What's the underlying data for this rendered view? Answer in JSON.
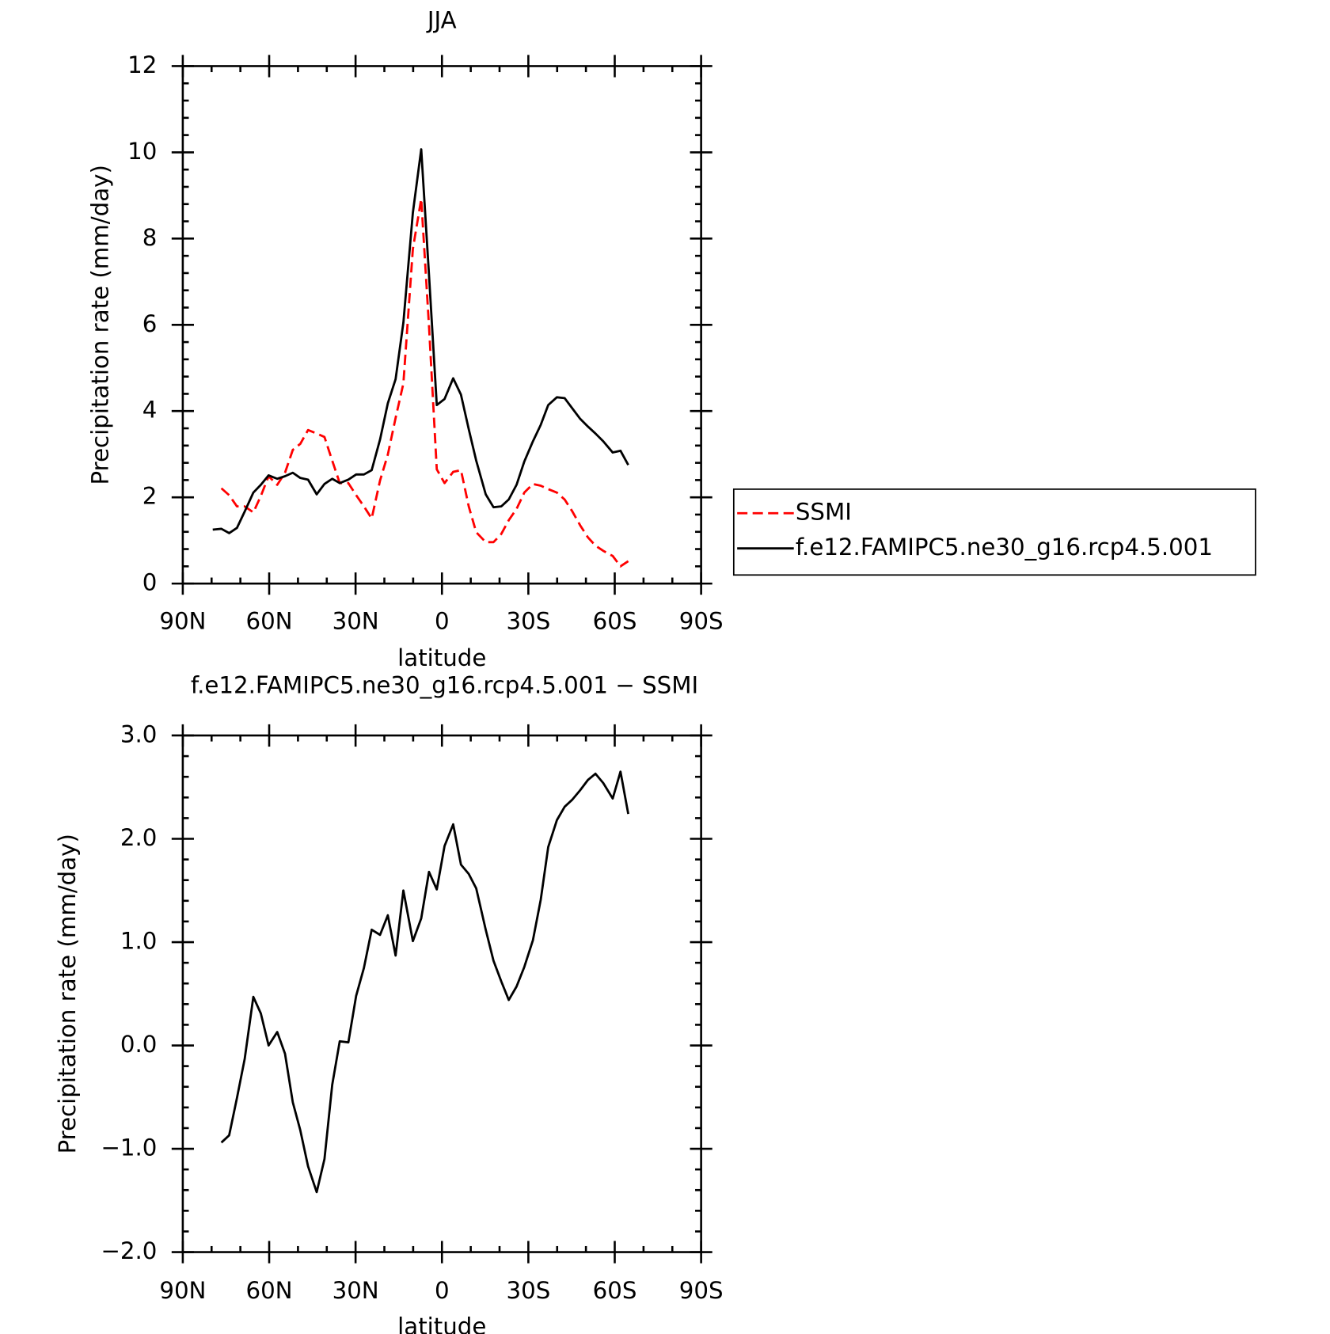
{
  "chart_data": [
    {
      "type": "line",
      "title": "JJA",
      "xlabel": "latitude",
      "ylabel": "Precipitation rate (mm/day)",
      "x": [
        79.6,
        76.6,
        73.9,
        71.2,
        68.5,
        65.5,
        62.9,
        60.2,
        57.2,
        54.5,
        51.8,
        49.2,
        46.5,
        43.5,
        40.8,
        38.1,
        35.5,
        32.5,
        29.8,
        27.1,
        24.4,
        21.5,
        18.8,
        16.1,
        13.4,
        10.1,
        7.2,
        4.5,
        1.8,
        -0.9,
        -3.9,
        -6.6,
        -9.3,
        -11.9,
        -15.2,
        -17.9,
        -20.6,
        -23.2,
        -25.9,
        -28.6,
        -31.6,
        -34.3,
        -36.9,
        -39.9,
        -42.6,
        -45.3,
        -48.0,
        -50.7,
        -53.3,
        -56.0,
        -59.3,
        -62.0,
        -64.7
      ],
      "series": [
        {
          "name": "SSMI",
          "color": "#ff0000",
          "dashed": true,
          "values": [
            null,
            2.21,
            2.05,
            1.79,
            1.79,
            1.65,
            2.03,
            2.49,
            2.29,
            2.57,
            3.1,
            3.24,
            3.56,
            3.48,
            3.4,
            2.85,
            2.33,
            2.33,
            2.05,
            1.79,
            1.51,
            2.39,
            2.99,
            3.84,
            4.64,
            7.76,
            8.92,
            5.97,
            2.65,
            2.33,
            2.59,
            2.63,
            1.79,
            1.19,
            0.96,
            0.96,
            1.15,
            1.47,
            1.73,
            2.11,
            2.31,
            2.27,
            2.19,
            2.11,
            1.95,
            1.67,
            1.35,
            1.07,
            0.88,
            0.76,
            0.64,
            0.4,
            0.52
          ]
        },
        {
          "name": "f.e12.FAMIPC5.ne30_g16.rcp4.5.001",
          "color": "#000000",
          "dashed": false,
          "values": [
            1.25,
            1.27,
            1.17,
            1.29,
            1.67,
            2.11,
            2.29,
            2.51,
            2.43,
            2.49,
            2.57,
            2.45,
            2.41,
            2.07,
            2.31,
            2.43,
            2.33,
            2.41,
            2.53,
            2.53,
            2.63,
            3.34,
            4.18,
            4.74,
            6.05,
            8.6,
            10.07,
            7.16,
            4.14,
            4.28,
            4.76,
            4.38,
            3.58,
            2.85,
            2.07,
            1.77,
            1.79,
            1.95,
            2.29,
            2.83,
            3.3,
            3.68,
            4.14,
            4.32,
            4.3,
            4.06,
            3.82,
            3.64,
            3.48,
            3.3,
            3.04,
            3.08,
            2.75
          ]
        }
      ],
      "xlim": [
        90,
        -90
      ],
      "xticks": [
        {
          "value": 90,
          "label": "90N"
        },
        {
          "value": 60,
          "label": "60N"
        },
        {
          "value": 30,
          "label": "30N"
        },
        0,
        {
          "value": -30,
          "label": "30S"
        },
        {
          "value": -60,
          "label": "60S"
        },
        {
          "value": -90,
          "label": "90S"
        }
      ],
      "ylim": [
        0,
        12
      ],
      "yticks": [
        0,
        2,
        4,
        6,
        8,
        10,
        12
      ],
      "legend": "right"
    },
    {
      "type": "line",
      "title": "f.e12.FAMIPC5.ne30_g16.rcp4.5.001 − SSMI",
      "xlabel": "latitude",
      "ylabel": "Precipitation rate (mm/day)",
      "x": [
        76.6,
        73.9,
        71.2,
        68.5,
        65.5,
        62.9,
        60.2,
        57.2,
        54.5,
        51.8,
        49.2,
        46.5,
        43.5,
        40.8,
        38.1,
        35.5,
        32.5,
        29.8,
        27.1,
        24.4,
        21.5,
        18.8,
        16.1,
        13.4,
        10.1,
        7.2,
        4.5,
        1.8,
        -0.9,
        -3.9,
        -6.6,
        -9.3,
        -11.9,
        -15.2,
        -17.9,
        -20.6,
        -23.2,
        -25.9,
        -28.6,
        -31.6,
        -34.3,
        -36.9,
        -39.9,
        -42.6,
        -45.3,
        -48.0,
        -50.7,
        -53.3,
        -56.0,
        -59.3,
        -62.0,
        -64.7
      ],
      "series": [
        {
          "color": "#000000",
          "dashed": false,
          "values": [
            -0.94,
            -0.87,
            -0.51,
            -0.13,
            0.47,
            0.31,
            0.0,
            0.13,
            -0.08,
            -0.55,
            -0.82,
            -1.17,
            -1.42,
            -1.1,
            -0.38,
            0.04,
            0.03,
            0.48,
            0.75,
            1.12,
            1.07,
            1.26,
            0.87,
            1.5,
            1.01,
            1.23,
            1.68,
            1.51,
            1.93,
            2.14,
            1.75,
            1.66,
            1.52,
            1.12,
            0.82,
            0.62,
            0.44,
            0.57,
            0.76,
            1.02,
            1.41,
            1.92,
            2.18,
            2.31,
            2.38,
            2.47,
            2.57,
            2.63,
            2.54,
            2.39,
            2.65,
            2.24
          ]
        }
      ],
      "xlim": [
        90,
        -90
      ],
      "xticks": [
        {
          "value": 90,
          "label": "90N"
        },
        {
          "value": 60,
          "label": "60N"
        },
        {
          "value": 30,
          "label": "30N"
        },
        0,
        {
          "value": -30,
          "label": "30S"
        },
        {
          "value": -60,
          "label": "60S"
        },
        {
          "value": -90,
          "label": "90S"
        }
      ],
      "ylim": [
        -2,
        3
      ],
      "yticks": [
        {
          "value": -2,
          "label": "−2.0"
        },
        {
          "value": -1,
          "label": "−1.0"
        },
        {
          "value": 0,
          "label": "0.0"
        },
        {
          "value": 1,
          "label": "1.0"
        },
        {
          "value": 2,
          "label": "2.0"
        },
        {
          "value": 3,
          "label": "3.0"
        }
      ]
    }
  ]
}
